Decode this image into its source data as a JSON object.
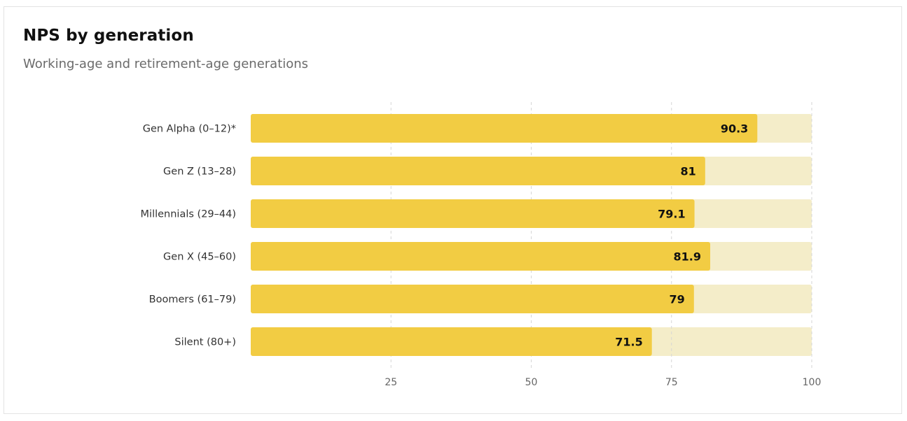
{
  "chart_data": {
    "type": "bar",
    "orientation": "horizontal",
    "title": "NPS by generation",
    "subtitle": "Working-age and retirement-age generations",
    "categories": [
      "Gen Alpha (0–12)*",
      "Gen Z (13–28)",
      "Millennials (29–44)",
      "Gen X (45–60)",
      "Boomers (61–79)",
      "Silent (80+)"
    ],
    "values": [
      90.3,
      81,
      79.1,
      81.9,
      79,
      71.5
    ],
    "value_labels": [
      "90.3",
      "81",
      "79.1",
      "81.9",
      "79",
      "71.5"
    ],
    "xlim": [
      0,
      100
    ],
    "xticks": [
      25,
      50,
      75,
      100
    ],
    "xtick_labels": [
      "25",
      "50",
      "75",
      "100"
    ],
    "grid": "vertical dashed",
    "colors": {
      "bar": "#f2cc43",
      "track": "#f4edc9",
      "grid": "#d6d6d6"
    }
  }
}
